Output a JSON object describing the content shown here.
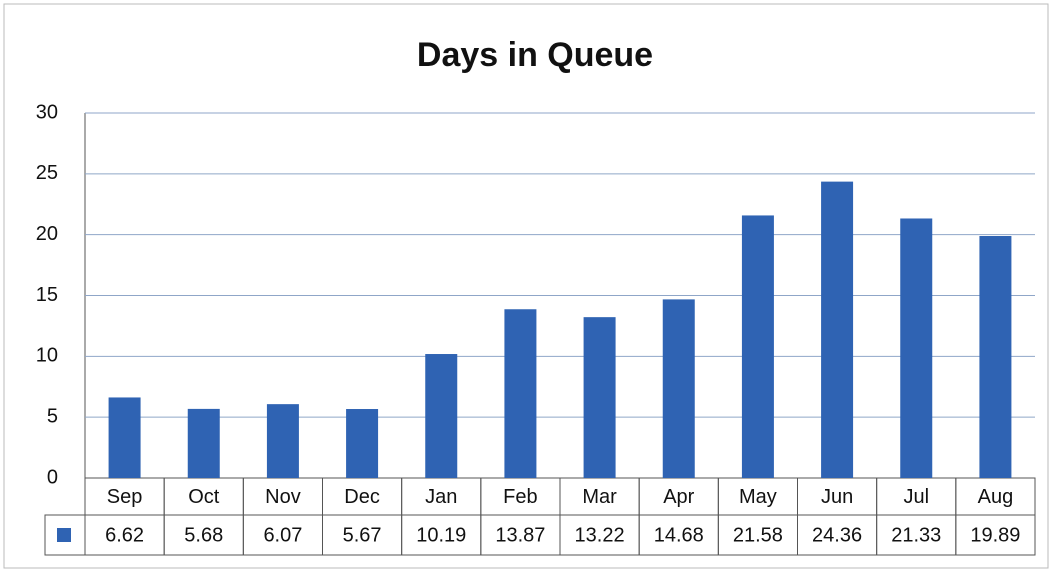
{
  "chart_data": {
    "type": "bar",
    "title": "Days in Queue",
    "categories": [
      "Sep",
      "Oct",
      "Nov",
      "Dec",
      "Jan",
      "Feb",
      "Mar",
      "Apr",
      "May",
      "Jun",
      "Jul",
      "Aug"
    ],
    "values": [
      6.62,
      5.68,
      6.07,
      5.67,
      10.19,
      13.87,
      13.22,
      14.68,
      21.58,
      24.36,
      21.33,
      19.89
    ],
    "color": "#2f63b3",
    "ylim": [
      0,
      30
    ],
    "yticks": [
      0,
      5,
      10,
      15,
      20,
      25,
      30
    ],
    "grid": true,
    "data_table": true
  }
}
